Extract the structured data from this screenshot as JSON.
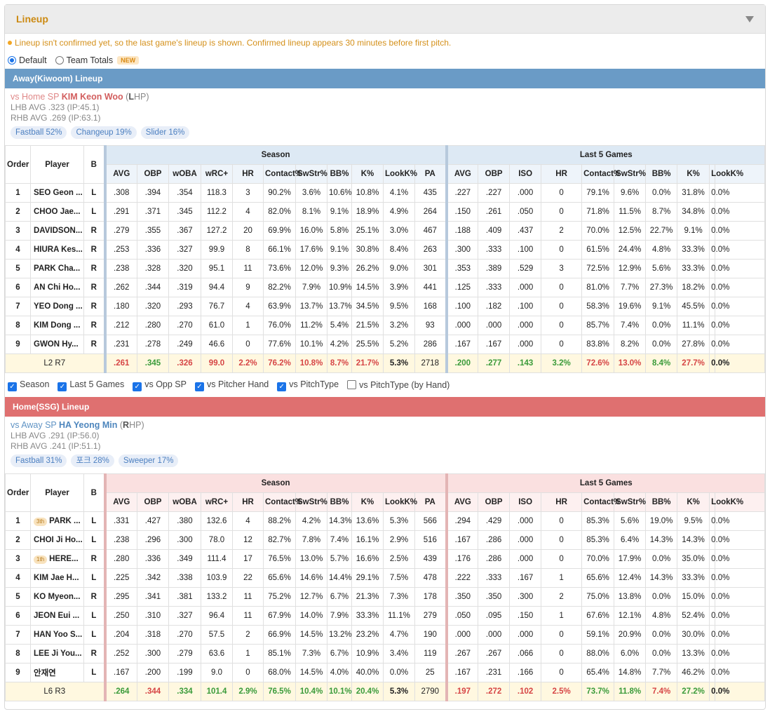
{
  "title": "Lineup",
  "notice": "Lineup isn't confirmed yet, so the last game's lineup is shown. Confirmed lineup appears 30 minutes before first pitch.",
  "radios": [
    {
      "label": "Default",
      "checked": true
    },
    {
      "label": "Team Totals",
      "checked": false,
      "badge": "NEW"
    }
  ],
  "colors": {
    "accent": "#cc8a12",
    "away": "#6a9bc6",
    "home": "#df7070",
    "good": "#3a9b3a",
    "bad": "#d64545"
  },
  "headers": {
    "order": "Order",
    "player": "Player",
    "b": "B",
    "season": "Season",
    "last5": "Last 5 Games",
    "season_cols": [
      "AVG",
      "OBP",
      "wOBA",
      "wRC+",
      "HR",
      "Contact%",
      "SwStr%",
      "BB%",
      "K%",
      "LookK%",
      "PA"
    ],
    "last5_cols": [
      "AVG",
      "OBP",
      "ISO",
      "HR",
      "Contact%",
      "SwStr%",
      "BB%",
      "K%",
      "LookK%"
    ]
  },
  "away": {
    "bar": "Away(Kiwoom) Lineup",
    "sp": {
      "prefix": "vs Home SP",
      "name": "KIM Keon Woo",
      "hand_letter": "L",
      "hand_rest": "HP",
      "lhb": "LHB AVG .323 (IP:45.1)",
      "rhb": "RHB AVG .269 (IP:63.1)"
    },
    "pitches": [
      "Fastball 52%",
      "Changeup 19%",
      "Slider 16%"
    ],
    "rows": [
      {
        "o": "1",
        "p": "SEO Geon ...",
        "b": "L",
        "s": [
          ".308",
          ".394",
          ".354",
          "118.3",
          "3",
          "90.2%",
          "3.6%",
          "10.6%",
          "10.8%",
          "4.1%",
          "435"
        ],
        "l": [
          ".227",
          ".227",
          ".000",
          "0",
          "79.1%",
          "9.6%",
          "0.0%",
          "31.8%",
          "0.0%"
        ]
      },
      {
        "o": "2",
        "p": "CHOO Jae...",
        "b": "L",
        "s": [
          ".291",
          ".371",
          ".345",
          "112.2",
          "4",
          "82.0%",
          "8.1%",
          "9.1%",
          "18.9%",
          "4.9%",
          "264"
        ],
        "l": [
          ".150",
          ".261",
          ".050",
          "0",
          "71.8%",
          "11.5%",
          "8.7%",
          "34.8%",
          "0.0%"
        ]
      },
      {
        "o": "3",
        "p": "DAVIDSON...",
        "b": "R",
        "s": [
          ".279",
          ".355",
          ".367",
          "127.2",
          "20",
          "69.9%",
          "16.0%",
          "5.8%",
          "25.1%",
          "3.0%",
          "467"
        ],
        "l": [
          ".188",
          ".409",
          ".437",
          "2",
          "70.0%",
          "12.5%",
          "22.7%",
          "9.1%",
          "0.0%"
        ]
      },
      {
        "o": "4",
        "p": "HIURA Kes...",
        "b": "R",
        "s": [
          ".253",
          ".336",
          ".327",
          "99.9",
          "8",
          "66.1%",
          "17.6%",
          "9.1%",
          "30.8%",
          "8.4%",
          "263"
        ],
        "l": [
          ".300",
          ".333",
          ".100",
          "0",
          "61.5%",
          "24.4%",
          "4.8%",
          "33.3%",
          "0.0%"
        ]
      },
      {
        "o": "5",
        "p": "PARK Cha...",
        "b": "R",
        "s": [
          ".238",
          ".328",
          ".320",
          "95.1",
          "11",
          "73.6%",
          "12.0%",
          "9.3%",
          "26.2%",
          "9.0%",
          "301"
        ],
        "l": [
          ".353",
          ".389",
          ".529",
          "3",
          "72.5%",
          "12.9%",
          "5.6%",
          "33.3%",
          "0.0%"
        ]
      },
      {
        "o": "6",
        "p": "AN Chi Ho...",
        "b": "R",
        "s": [
          ".262",
          ".344",
          ".319",
          "94.4",
          "9",
          "82.2%",
          "7.9%",
          "10.9%",
          "14.5%",
          "3.9%",
          "441"
        ],
        "l": [
          ".125",
          ".333",
          ".000",
          "0",
          "81.0%",
          "7.7%",
          "27.3%",
          "18.2%",
          "0.0%"
        ]
      },
      {
        "o": "7",
        "p": "YEO Dong ...",
        "b": "R",
        "s": [
          ".180",
          ".320",
          ".293",
          "76.7",
          "4",
          "63.9%",
          "13.7%",
          "13.7%",
          "34.5%",
          "9.5%",
          "168"
        ],
        "l": [
          ".100",
          ".182",
          ".100",
          "0",
          "58.3%",
          "19.6%",
          "9.1%",
          "45.5%",
          "0.0%"
        ]
      },
      {
        "o": "8",
        "p": "KIM Dong ...",
        "b": "R",
        "s": [
          ".212",
          ".280",
          ".270",
          "61.0",
          "1",
          "76.0%",
          "11.2%",
          "5.4%",
          "21.5%",
          "3.2%",
          "93"
        ],
        "l": [
          ".000",
          ".000",
          ".000",
          "0",
          "85.7%",
          "7.4%",
          "0.0%",
          "11.1%",
          "0.0%"
        ]
      },
      {
        "o": "9",
        "p": "GWON Hy...",
        "b": "R",
        "s": [
          ".231",
          ".278",
          ".249",
          "46.6",
          "0",
          "77.6%",
          "10.1%",
          "4.2%",
          "25.5%",
          "5.2%",
          "286"
        ],
        "l": [
          ".167",
          ".167",
          ".000",
          "0",
          "83.8%",
          "8.2%",
          "0.0%",
          "27.8%",
          "0.0%"
        ]
      }
    ],
    "total": {
      "label": "L2 R7",
      "s": [
        ".261",
        ".345",
        ".326",
        "99.0",
        "2.2%",
        "76.2%",
        "10.8%",
        "8.7%",
        "21.7%",
        "5.3%",
        "2718"
      ],
      "sc": [
        "r",
        "g",
        "r",
        "r",
        "r",
        "r",
        "r",
        "r",
        "r",
        "k",
        "n"
      ],
      "l": [
        ".200",
        ".277",
        ".143",
        "3.2%",
        "72.6%",
        "13.0%",
        "8.4%",
        "27.7%",
        "0.0%"
      ],
      "lc": [
        "g",
        "g",
        "g",
        "g",
        "r",
        "r",
        "g",
        "r",
        "k"
      ]
    }
  },
  "filters": [
    {
      "label": "Season",
      "checked": true
    },
    {
      "label": "Last 5 Games",
      "checked": true
    },
    {
      "label": "vs Opp SP",
      "checked": true
    },
    {
      "label": "vs Pitcher Hand",
      "checked": true
    },
    {
      "label": "vs PitchType",
      "checked": true
    },
    {
      "label": "vs PitchType (by Hand)",
      "checked": false
    }
  ],
  "home": {
    "bar": "Home(SSG) Lineup",
    "sp": {
      "prefix": "vs Away SP",
      "name": "HA Yeong Min",
      "hand_letter": "R",
      "hand_rest": "HP",
      "lhb": "LHB AVG .291 (IP:56.0)",
      "rhb": "RHB AVG .241 (IP:51.1)"
    },
    "pitches": [
      "Fastball 31%",
      "포크 28%",
      "Sweeper 17%"
    ],
    "rows": [
      {
        "o": "1",
        "p": "PARK ...",
        "badge": "3th",
        "b": "L",
        "s": [
          ".331",
          ".427",
          ".380",
          "132.6",
          "4",
          "88.2%",
          "4.2%",
          "14.3%",
          "13.6%",
          "5.3%",
          "566"
        ],
        "l": [
          ".294",
          ".429",
          ".000",
          "0",
          "85.3%",
          "5.6%",
          "19.0%",
          "9.5%",
          "0.0%"
        ]
      },
      {
        "o": "2",
        "p": "CHOI Ji Ho...",
        "b": "L",
        "s": [
          ".238",
          ".296",
          ".300",
          "78.0",
          "12",
          "82.7%",
          "7.8%",
          "7.4%",
          "16.1%",
          "2.9%",
          "516"
        ],
        "l": [
          ".167",
          ".286",
          ".000",
          "0",
          "85.3%",
          "6.4%",
          "14.3%",
          "14.3%",
          "0.0%"
        ]
      },
      {
        "o": "3",
        "p": "HERE...",
        "badge": "1th",
        "b": "R",
        "s": [
          ".280",
          ".336",
          ".349",
          "111.4",
          "17",
          "76.5%",
          "13.0%",
          "5.7%",
          "16.6%",
          "2.5%",
          "439"
        ],
        "l": [
          ".176",
          ".286",
          ".000",
          "0",
          "70.0%",
          "17.9%",
          "0.0%",
          "35.0%",
          "0.0%"
        ]
      },
      {
        "o": "4",
        "p": "KIM Jae H...",
        "b": "L",
        "s": [
          ".225",
          ".342",
          ".338",
          "103.9",
          "22",
          "65.6%",
          "14.6%",
          "14.4%",
          "29.1%",
          "7.5%",
          "478"
        ],
        "l": [
          ".222",
          ".333",
          ".167",
          "1",
          "65.6%",
          "12.4%",
          "14.3%",
          "33.3%",
          "0.0%"
        ]
      },
      {
        "o": "5",
        "p": "KO Myeon...",
        "b": "R",
        "s": [
          ".295",
          ".341",
          ".381",
          "133.2",
          "11",
          "75.2%",
          "12.7%",
          "6.7%",
          "21.3%",
          "7.3%",
          "178"
        ],
        "l": [
          ".350",
          ".350",
          ".300",
          "2",
          "75.0%",
          "13.8%",
          "0.0%",
          "15.0%",
          "0.0%"
        ]
      },
      {
        "o": "6",
        "p": "JEON Eui ...",
        "b": "L",
        "s": [
          ".250",
          ".310",
          ".327",
          "96.4",
          "11",
          "67.9%",
          "14.0%",
          "7.9%",
          "33.3%",
          "11.1%",
          "279"
        ],
        "l": [
          ".050",
          ".095",
          ".150",
          "1",
          "67.6%",
          "12.1%",
          "4.8%",
          "52.4%",
          "0.0%"
        ]
      },
      {
        "o": "7",
        "p": "HAN Yoo S...",
        "b": "L",
        "s": [
          ".204",
          ".318",
          ".270",
          "57.5",
          "2",
          "66.9%",
          "14.5%",
          "13.2%",
          "23.2%",
          "4.7%",
          "190"
        ],
        "l": [
          ".000",
          ".000",
          ".000",
          "0",
          "59.1%",
          "20.9%",
          "0.0%",
          "30.0%",
          "0.0%"
        ]
      },
      {
        "o": "8",
        "p": "LEE Ji You...",
        "b": "R",
        "s": [
          ".252",
          ".300",
          ".279",
          "63.6",
          "1",
          "85.1%",
          "7.3%",
          "6.7%",
          "10.9%",
          "3.4%",
          "119"
        ],
        "l": [
          ".267",
          ".267",
          ".066",
          "0",
          "88.0%",
          "6.0%",
          "0.0%",
          "13.3%",
          "0.0%"
        ]
      },
      {
        "o": "9",
        "p": "안재연",
        "b": "L",
        "s": [
          ".167",
          ".200",
          ".199",
          "9.0",
          "0",
          "68.0%",
          "14.5%",
          "4.0%",
          "40.0%",
          "0.0%",
          "25"
        ],
        "l": [
          ".167",
          ".231",
          ".166",
          "0",
          "65.4%",
          "14.8%",
          "7.7%",
          "46.2%",
          "0.0%"
        ]
      }
    ],
    "total": {
      "label": "L6 R3",
      "s": [
        ".264",
        ".344",
        ".334",
        "101.4",
        "2.9%",
        "76.5%",
        "10.4%",
        "10.1%",
        "20.4%",
        "5.3%",
        "2790"
      ],
      "sc": [
        "g",
        "r",
        "g",
        "g",
        "g",
        "g",
        "g",
        "g",
        "g",
        "k",
        "n"
      ],
      "l": [
        ".197",
        ".272",
        ".102",
        "2.5%",
        "73.7%",
        "11.8%",
        "7.4%",
        "27.2%",
        "0.0%"
      ],
      "lc": [
        "r",
        "r",
        "r",
        "r",
        "g",
        "g",
        "r",
        "g",
        "k"
      ]
    }
  }
}
